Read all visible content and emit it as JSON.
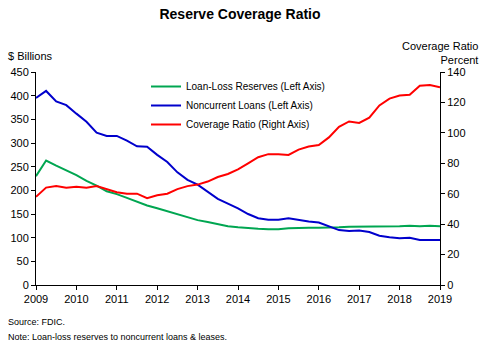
{
  "chart_data": {
    "type": "line",
    "title": "Reserve Coverage Ratio",
    "ylabel": "$ Billions",
    "y2label": [
      "Coverage Ratio",
      "Percent"
    ],
    "source": "Source: FDIC.",
    "note": "Note: Loan-loss reserves to noncurrent loans & leases.",
    "x": [
      2009,
      2009.25,
      2009.5,
      2009.75,
      2010,
      2010.25,
      2010.5,
      2010.75,
      2011,
      2011.25,
      2011.5,
      2011.75,
      2012,
      2012.25,
      2012.5,
      2012.75,
      2013,
      2013.25,
      2013.5,
      2013.75,
      2014,
      2014.25,
      2014.5,
      2014.75,
      2015,
      2015.25,
      2015.5,
      2015.75,
      2016,
      2016.25,
      2016.5,
      2016.75,
      2017,
      2017.25,
      2017.5,
      2017.75,
      2018,
      2018.25,
      2018.5,
      2018.75,
      2019
    ],
    "xlim": [
      2009,
      2019
    ],
    "xticks": [
      2009,
      2010,
      2011,
      2012,
      2013,
      2014,
      2015,
      2016,
      2017,
      2018,
      2019
    ],
    "ylim": [
      0,
      450
    ],
    "yticks": [
      0,
      50,
      100,
      150,
      200,
      250,
      300,
      350,
      400,
      450
    ],
    "y2lim": [
      0,
      140
    ],
    "y2ticks": [
      0,
      20,
      40,
      60,
      80,
      100,
      120,
      140
    ],
    "grid": false,
    "legend": "upper center",
    "series": [
      {
        "name": "Loan-Loss Reserves (Left Axis)",
        "color": "#00a651",
        "axis": "y",
        "values": [
          230,
          263,
          252,
          242,
          232,
          220,
          210,
          198,
          192,
          184,
          176,
          168,
          162,
          156,
          149,
          143,
          137,
          133,
          128,
          124,
          122,
          120,
          119,
          118,
          118,
          120,
          121,
          121,
          121,
          121,
          122,
          123,
          123,
          123,
          123,
          124,
          124,
          125,
          124,
          125,
          124
        ]
      },
      {
        "name": "Noncurrent Loans (Left Axis)",
        "color": "#0000cc",
        "axis": "y",
        "values": [
          395,
          410,
          388,
          380,
          362,
          345,
          322,
          315,
          315,
          305,
          293,
          292,
          275,
          260,
          238,
          222,
          212,
          197,
          182,
          172,
          162,
          150,
          141,
          138,
          138,
          141,
          137,
          134,
          132,
          124,
          116,
          114,
          115,
          112,
          104,
          101,
          99,
          100,
          95,
          95,
          95
        ]
      },
      {
        "name": "Coverage Ratio (Right Axis)",
        "color": "#ff0000",
        "axis": "y2",
        "values": [
          58,
          64,
          65,
          64,
          64.5,
          64,
          65,
          63,
          61,
          60,
          60,
          57,
          59,
          60,
          63,
          65,
          66,
          68,
          71,
          73,
          76,
          80,
          84,
          86,
          86,
          85.5,
          89,
          91,
          92,
          97,
          104,
          107.5,
          106.5,
          110,
          118,
          122.5,
          124.5,
          125,
          131,
          131.5,
          130
        ]
      }
    ]
  }
}
